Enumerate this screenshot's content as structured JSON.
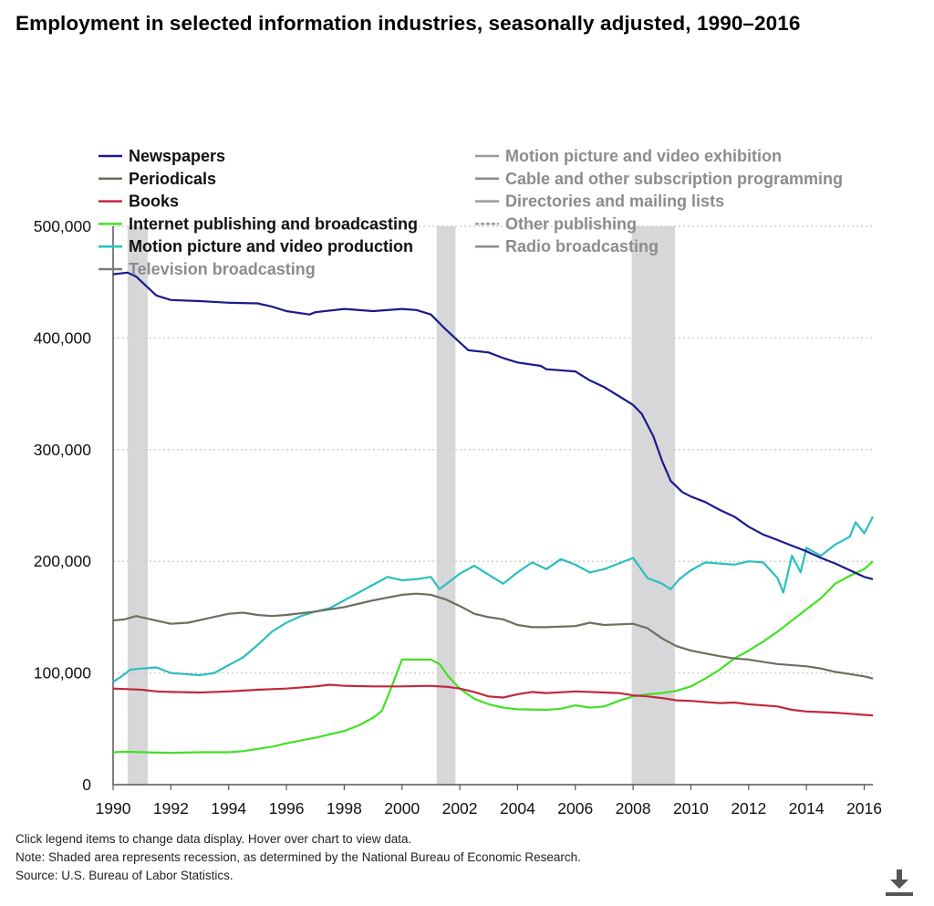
{
  "header": {
    "title": "Employment in selected information industries, seasonally adjusted, 1990–2016"
  },
  "notes": {
    "line1": "Click legend items to change data display. Hover over chart to view data.",
    "line2": "Note: Shaded area represents recession, as determined by the National Bureau of Economic Research.",
    "line3": "Source: U.S. Bureau of Labor Statistics."
  },
  "toolbar": {
    "download_icon": "download-icon"
  },
  "colors": {
    "recession": "#d7d7d9",
    "grid": "#cfcfcf",
    "inactive_legend_text": "#8c8c8c"
  },
  "chart_data": {
    "type": "line",
    "title": "Employment in selected information industries, seasonally adjusted, 1990–2016",
    "xlabel": "",
    "ylabel": "",
    "xlim": [
      1990,
      2016.3
    ],
    "ylim": [
      0,
      500000
    ],
    "x_ticks": [
      "1990",
      "1992",
      "1994",
      "1996",
      "1998",
      "2000",
      "2002",
      "2004",
      "2006",
      "2008",
      "2010",
      "2012",
      "2014",
      "2016"
    ],
    "y_ticks": [
      {
        "value": 0,
        "label": "0"
      },
      {
        "value": 100000,
        "label": "100,000"
      },
      {
        "value": 200000,
        "label": "200,000"
      },
      {
        "value": 300000,
        "label": "300,000"
      },
      {
        "value": 400000,
        "label": "400,000"
      },
      {
        "value": 500000,
        "label": "500,000"
      }
    ],
    "grid": "horizontal dotted",
    "legend_placement": "top, two columns",
    "recessions": [
      [
        1990.5,
        1991.2
      ],
      [
        2001.2,
        2001.85
      ],
      [
        2007.95,
        2009.45
      ]
    ],
    "series": [
      {
        "name": "Newspapers",
        "active": true,
        "color": "#1a1a8c",
        "points": [
          [
            1990,
            457000
          ],
          [
            1990.5,
            458500
          ],
          [
            1990.8,
            455000
          ],
          [
            1991,
            450000
          ],
          [
            1991.5,
            438000
          ],
          [
            1992,
            434000
          ],
          [
            1993,
            433000
          ],
          [
            1994,
            431500
          ],
          [
            1995,
            431000
          ],
          [
            1995.5,
            428000
          ],
          [
            1996,
            424000
          ],
          [
            1996.8,
            421000
          ],
          [
            1997,
            423000
          ],
          [
            1998,
            426000
          ],
          [
            1999,
            424000
          ],
          [
            2000,
            426000
          ],
          [
            2000.5,
            425000
          ],
          [
            2001,
            421000
          ],
          [
            2001.5,
            408000
          ],
          [
            2002,
            396000
          ],
          [
            2002.3,
            389000
          ],
          [
            2003,
            387000
          ],
          [
            2003.5,
            382000
          ],
          [
            2004,
            378000
          ],
          [
            2004.8,
            375000
          ],
          [
            2005,
            372000
          ],
          [
            2006,
            370000
          ],
          [
            2006.5,
            362000
          ],
          [
            2007,
            356000
          ],
          [
            2007.5,
            348000
          ],
          [
            2008,
            340000
          ],
          [
            2008.3,
            332000
          ],
          [
            2008.7,
            312000
          ],
          [
            2009,
            290000
          ],
          [
            2009.3,
            272000
          ],
          [
            2009.7,
            262000
          ],
          [
            2010,
            258000
          ],
          [
            2010.5,
            253000
          ],
          [
            2011,
            246000
          ],
          [
            2011.5,
            240000
          ],
          [
            2012,
            231000
          ],
          [
            2012.5,
            224000
          ],
          [
            2013,
            219000
          ],
          [
            2013.5,
            214000
          ],
          [
            2014,
            209000
          ],
          [
            2014.5,
            203000
          ],
          [
            2015,
            198000
          ],
          [
            2015.5,
            192000
          ],
          [
            2016,
            186000
          ],
          [
            2016.3,
            184000
          ]
        ]
      },
      {
        "name": "Periodicals",
        "active": true,
        "color": "#6e6e60",
        "points": [
          [
            1990,
            147000
          ],
          [
            1990.4,
            148000
          ],
          [
            1990.8,
            151000
          ],
          [
            1991.3,
            148000
          ],
          [
            1992,
            144000
          ],
          [
            1992.6,
            145000
          ],
          [
            1993.3,
            149000
          ],
          [
            1994,
            153000
          ],
          [
            1994.5,
            154000
          ],
          [
            1995,
            152000
          ],
          [
            1995.5,
            151000
          ],
          [
            1996,
            152000
          ],
          [
            1997,
            155000
          ],
          [
            1998,
            159000
          ],
          [
            1999,
            165000
          ],
          [
            2000,
            170000
          ],
          [
            2000.5,
            171000
          ],
          [
            2001,
            170000
          ],
          [
            2001.5,
            166000
          ],
          [
            2002,
            160000
          ],
          [
            2002.5,
            153000
          ],
          [
            2003,
            150000
          ],
          [
            2003.5,
            148000
          ],
          [
            2004,
            143000
          ],
          [
            2004.5,
            141000
          ],
          [
            2005,
            141000
          ],
          [
            2006,
            142000
          ],
          [
            2006.5,
            145000
          ],
          [
            2007,
            143000
          ],
          [
            2008,
            144000
          ],
          [
            2008.5,
            140000
          ],
          [
            2009,
            131000
          ],
          [
            2009.5,
            124000
          ],
          [
            2010,
            120000
          ],
          [
            2011,
            115000
          ],
          [
            2011.5,
            113000
          ],
          [
            2012,
            112000
          ],
          [
            2012.5,
            110000
          ],
          [
            2013,
            108000
          ],
          [
            2014,
            106000
          ],
          [
            2014.5,
            104000
          ],
          [
            2015,
            101000
          ],
          [
            2015.5,
            99000
          ],
          [
            2016,
            97000
          ],
          [
            2016.3,
            95000
          ]
        ]
      },
      {
        "name": "Books",
        "active": true,
        "color": "#c0293d",
        "points": [
          [
            1990,
            86000
          ],
          [
            1990.5,
            85500
          ],
          [
            1991,
            85000
          ],
          [
            1991.5,
            83500
          ],
          [
            1992,
            83000
          ],
          [
            1993,
            82500
          ],
          [
            1994,
            83500
          ],
          [
            1995,
            85000
          ],
          [
            1996,
            86000
          ],
          [
            1997,
            88000
          ],
          [
            1997.5,
            89500
          ],
          [
            1998,
            88500
          ],
          [
            1999,
            88000
          ],
          [
            2000,
            88000
          ],
          [
            2001,
            88500
          ],
          [
            2001.6,
            87500
          ],
          [
            2002,
            86000
          ],
          [
            2002.5,
            83000
          ],
          [
            2003,
            79000
          ],
          [
            2003.5,
            78000
          ],
          [
            2004,
            81000
          ],
          [
            2004.5,
            83000
          ],
          [
            2005,
            82000
          ],
          [
            2006,
            83500
          ],
          [
            2007,
            82500
          ],
          [
            2007.5,
            82000
          ],
          [
            2008,
            80000
          ],
          [
            2008.5,
            79000
          ],
          [
            2009,
            77500
          ],
          [
            2009.5,
            75500
          ],
          [
            2010,
            75000
          ],
          [
            2011,
            73000
          ],
          [
            2011.5,
            73500
          ],
          [
            2012,
            72000
          ],
          [
            2013,
            70000
          ],
          [
            2013.5,
            67000
          ],
          [
            2014,
            65500
          ],
          [
            2015,
            64500
          ],
          [
            2015.5,
            63500
          ],
          [
            2016,
            62500
          ],
          [
            2016.3,
            62000
          ]
        ]
      },
      {
        "name": "Internet publishing and broadcasting",
        "active": true,
        "color": "#44e024",
        "points": [
          [
            1990,
            29000
          ],
          [
            1990.5,
            29500
          ],
          [
            1991,
            29000
          ],
          [
            1992,
            28500
          ],
          [
            1993,
            29000
          ],
          [
            1994,
            29000
          ],
          [
            1994.5,
            30000
          ],
          [
            1995,
            32000
          ],
          [
            1995.5,
            34000
          ],
          [
            1996,
            37000
          ],
          [
            1997,
            42000
          ],
          [
            1998,
            48000
          ],
          [
            1998.5,
            53000
          ],
          [
            1999,
            60000
          ],
          [
            1999.3,
            66000
          ],
          [
            1999.6,
            85000
          ],
          [
            1999.85,
            102000
          ],
          [
            2000,
            112000
          ],
          [
            2001,
            112000
          ],
          [
            2001.3,
            108000
          ],
          [
            2001.6,
            97000
          ],
          [
            2002,
            86000
          ],
          [
            2002.5,
            77000
          ],
          [
            2003,
            72000
          ],
          [
            2003.5,
            69000
          ],
          [
            2004,
            67500
          ],
          [
            2005,
            67000
          ],
          [
            2005.5,
            68000
          ],
          [
            2006,
            71000
          ],
          [
            2006.5,
            69000
          ],
          [
            2007,
            70000
          ],
          [
            2007.5,
            75000
          ],
          [
            2008,
            79000
          ],
          [
            2008.5,
            81000
          ],
          [
            2009,
            82000
          ],
          [
            2009.5,
            84000
          ],
          [
            2010,
            88000
          ],
          [
            2010.5,
            95000
          ],
          [
            2011,
            103000
          ],
          [
            2011.5,
            113000
          ],
          [
            2012,
            120000
          ],
          [
            2012.5,
            128000
          ],
          [
            2013,
            137000
          ],
          [
            2013.5,
            147000
          ],
          [
            2014,
            157000
          ],
          [
            2014.5,
            167000
          ],
          [
            2015,
            180000
          ],
          [
            2015.5,
            187000
          ],
          [
            2016,
            193000
          ],
          [
            2016.3,
            200000
          ]
        ]
      },
      {
        "name": "Motion picture and video production",
        "active": true,
        "color": "#2bbfbf",
        "points": [
          [
            1990,
            92000
          ],
          [
            1990.3,
            97000
          ],
          [
            1990.6,
            103000
          ],
          [
            1991,
            104000
          ],
          [
            1991.5,
            105000
          ],
          [
            1992,
            100000
          ],
          [
            1992.5,
            99000
          ],
          [
            1993,
            98000
          ],
          [
            1993.5,
            100000
          ],
          [
            1994,
            107000
          ],
          [
            1994.5,
            114000
          ],
          [
            1995,
            125000
          ],
          [
            1995.5,
            137000
          ],
          [
            1996,
            145000
          ],
          [
            1996.5,
            151000
          ],
          [
            1997,
            155000
          ],
          [
            1997.5,
            158000
          ],
          [
            1998,
            165000
          ],
          [
            1998.5,
            172000
          ],
          [
            1999,
            179000
          ],
          [
            1999.5,
            186000
          ],
          [
            2000,
            183000
          ],
          [
            2000.5,
            184000
          ],
          [
            2001,
            186000
          ],
          [
            2001.3,
            175000
          ],
          [
            2001.6,
            181000
          ],
          [
            2002,
            189000
          ],
          [
            2002.5,
            196000
          ],
          [
            2003,
            188000
          ],
          [
            2003.5,
            180000
          ],
          [
            2004,
            190000
          ],
          [
            2004.5,
            199000
          ],
          [
            2005,
            193000
          ],
          [
            2005.5,
            202000
          ],
          [
            2006,
            197000
          ],
          [
            2006.5,
            190000
          ],
          [
            2007,
            193000
          ],
          [
            2007.5,
            198000
          ],
          [
            2008,
            203000
          ],
          [
            2008.5,
            185000
          ],
          [
            2009,
            180000
          ],
          [
            2009.3,
            175000
          ],
          [
            2009.6,
            184000
          ],
          [
            2010,
            192000
          ],
          [
            2010.5,
            199000
          ],
          [
            2011,
            198000
          ],
          [
            2011.5,
            197000
          ],
          [
            2012,
            200000
          ],
          [
            2012.5,
            199000
          ],
          [
            2013,
            185000
          ],
          [
            2013.2,
            172000
          ],
          [
            2013.5,
            205000
          ],
          [
            2013.8,
            190000
          ],
          [
            2014,
            212000
          ],
          [
            2014.5,
            205000
          ],
          [
            2015,
            215000
          ],
          [
            2015.5,
            222000
          ],
          [
            2015.7,
            235000
          ],
          [
            2016,
            225000
          ],
          [
            2016.3,
            240000
          ]
        ]
      },
      {
        "name": "Television broadcasting",
        "active": false,
        "color": "#7a7a7a",
        "points": []
      },
      {
        "name": "Motion picture and video exhibition",
        "active": false,
        "color": "#9a9a9a",
        "points": []
      },
      {
        "name": "Cable and other subscription programming",
        "active": false,
        "color": "#8a8a8a",
        "points": []
      },
      {
        "name": "Directories and mailing lists",
        "active": false,
        "color": "#9a9a9a",
        "points": []
      },
      {
        "name": "Other publishing",
        "active": false,
        "color": "#9a9a9a",
        "points": []
      },
      {
        "name": "Radio broadcasting",
        "active": false,
        "color": "#8a8a8a",
        "points": []
      }
    ]
  }
}
